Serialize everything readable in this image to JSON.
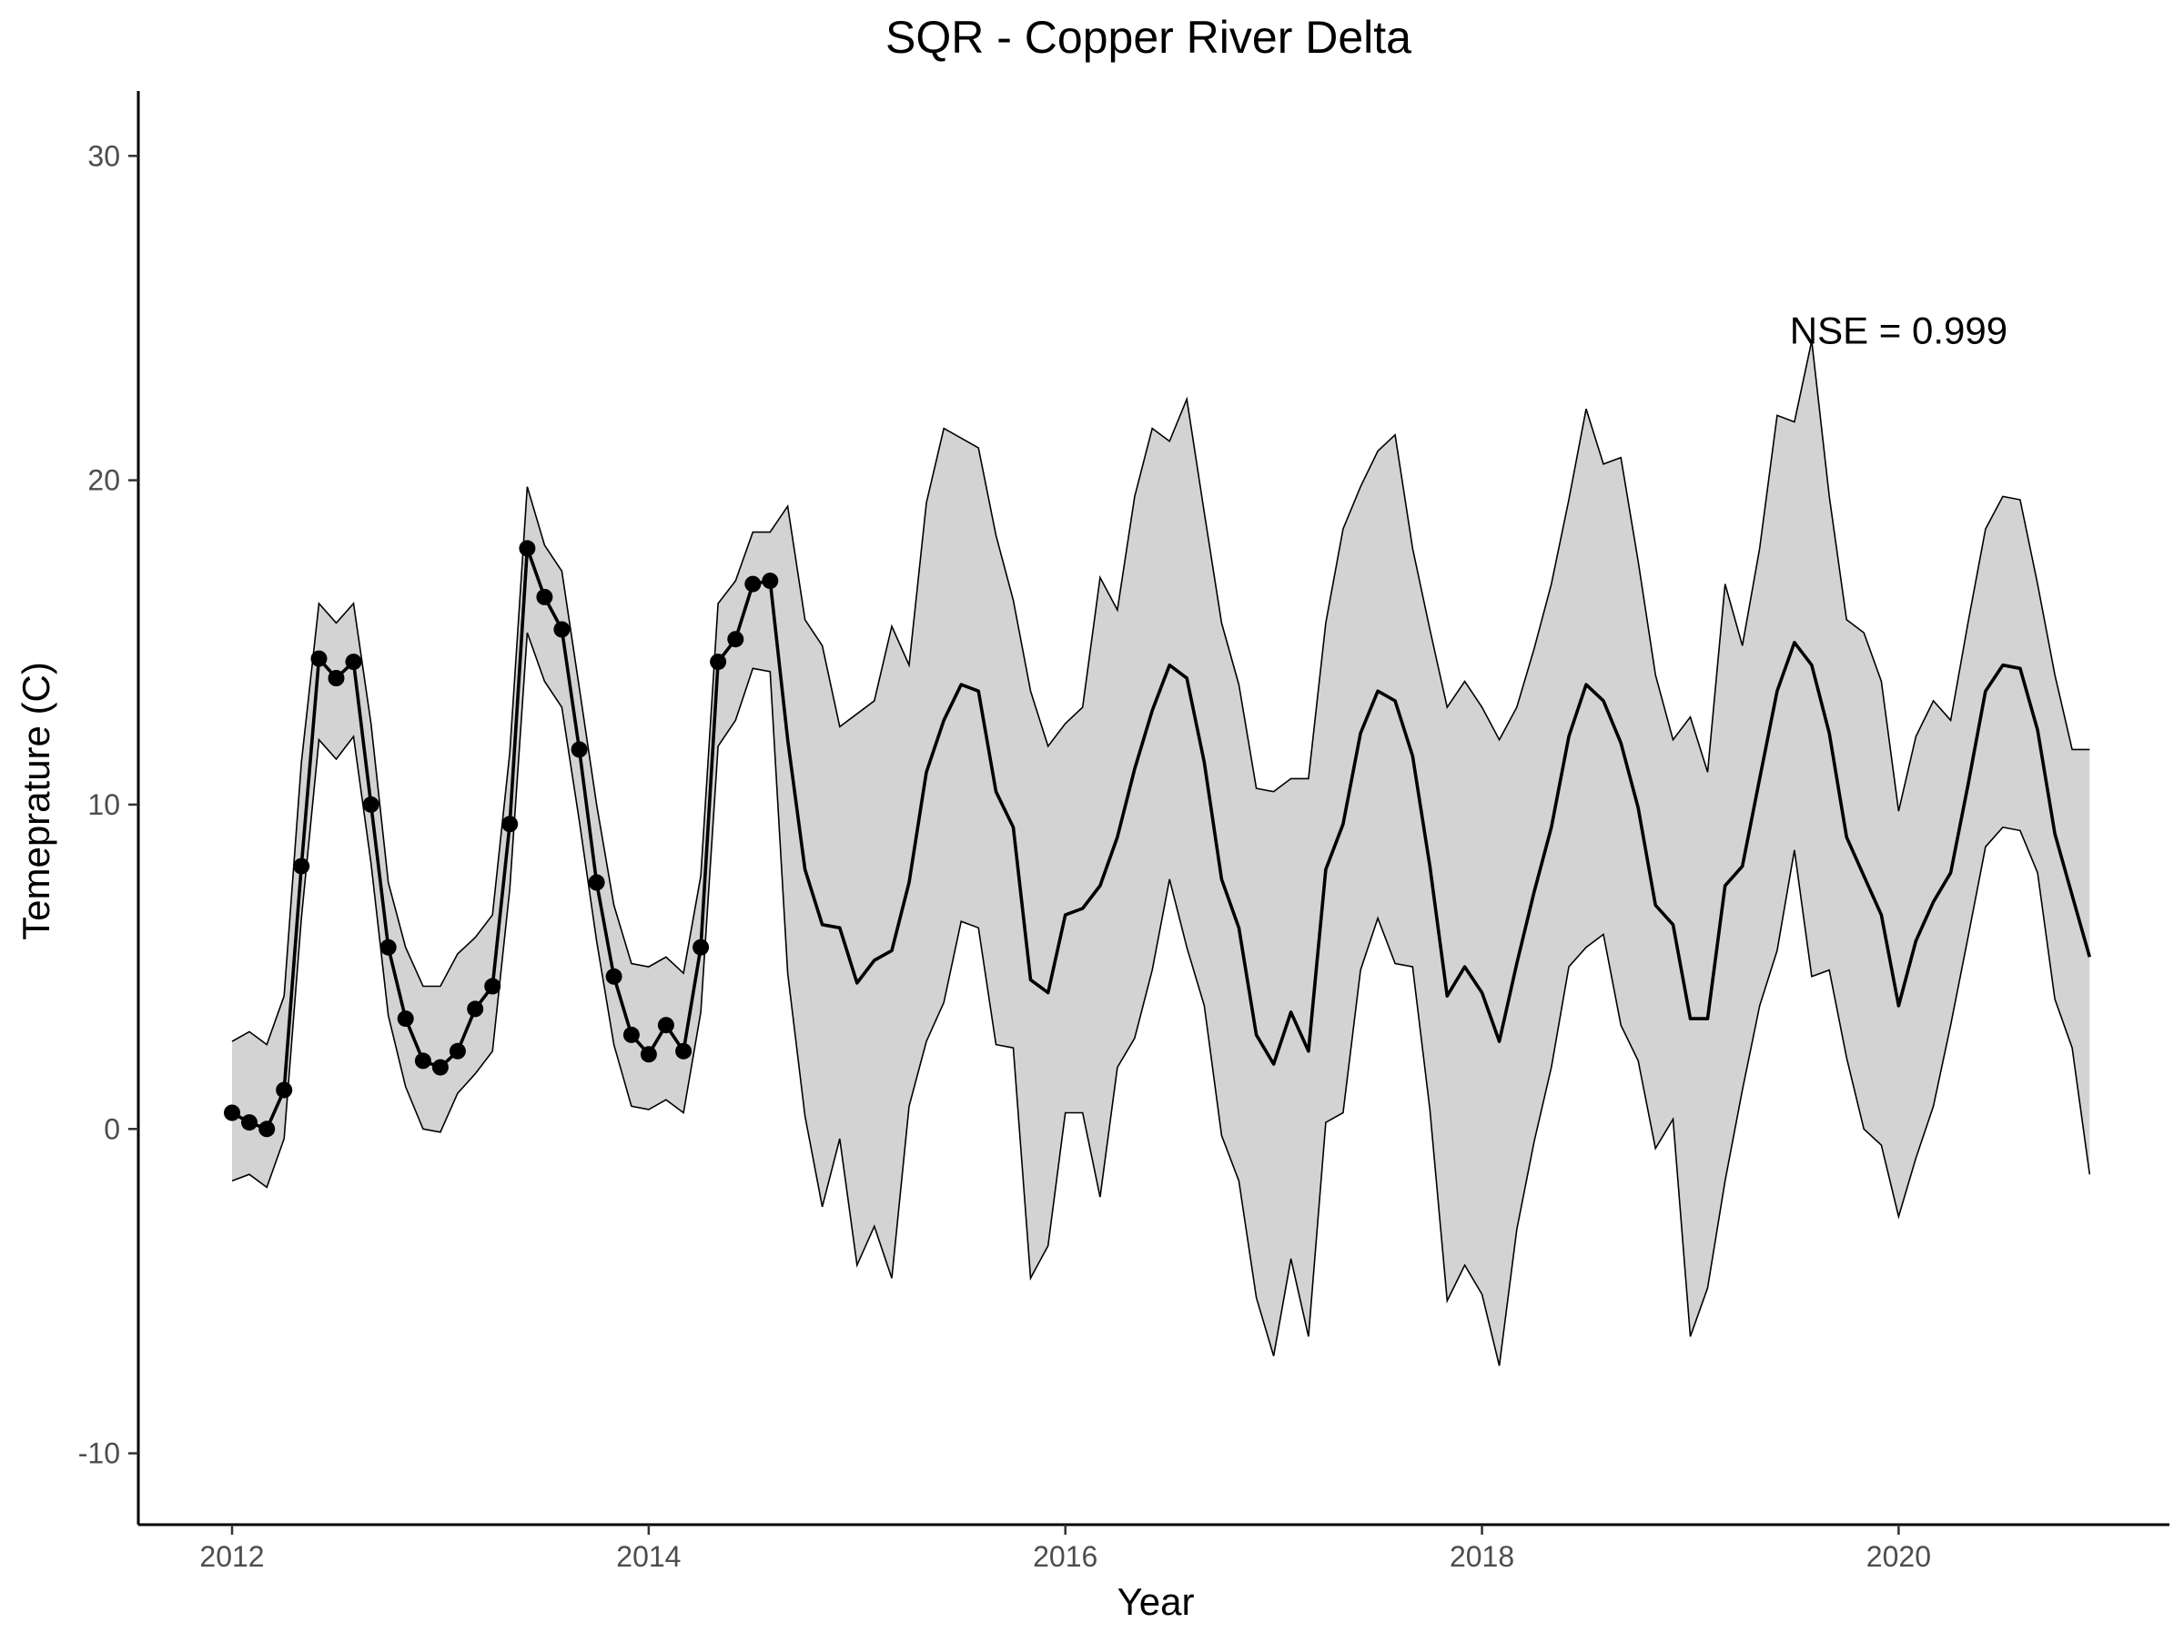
{
  "chart_data": {
    "type": "line",
    "title": "SQR - Copper River Delta",
    "xlabel": "Year",
    "ylabel": "Temeprature (C)",
    "xlim": [
      2011.55,
      2021.3
    ],
    "ylim": [
      -12.2,
      32
    ],
    "x_ticks": [
      2012,
      2014,
      2016,
      2018,
      2020
    ],
    "x_tick_labels": [
      "2012",
      "2014",
      "2016",
      "2018",
      "2020"
    ],
    "y_ticks": [
      -10,
      0,
      10,
      20,
      30
    ],
    "y_tick_labels": [
      "-10",
      "0",
      "10",
      "20",
      "30"
    ],
    "grid": false,
    "legend": "none",
    "annotation": {
      "text": "NSE = 0.999",
      "x": 2020.0,
      "y": 24.6
    },
    "colors": {
      "ribbon": "#d3d3d3",
      "line": "#000000",
      "points": "#000000"
    },
    "series": [
      {
        "kind": "ribbon",
        "x": [
          2012.0,
          2012.083,
          2012.167,
          2012.25,
          2012.333,
          2012.417,
          2012.5,
          2012.583,
          2012.667,
          2012.75,
          2012.833,
          2012.917,
          2013.0,
          2013.083,
          2013.167,
          2013.25,
          2013.333,
          2013.417,
          2013.5,
          2013.583,
          2013.667,
          2013.75,
          2013.833,
          2013.917,
          2014.0,
          2014.083,
          2014.167,
          2014.25,
          2014.333,
          2014.417,
          2014.5,
          2014.583,
          2014.667,
          2014.75,
          2014.833,
          2014.917,
          2015.0,
          2015.083,
          2015.167,
          2015.25,
          2015.333,
          2015.417,
          2015.5,
          2015.583,
          2015.667,
          2015.75,
          2015.833,
          2015.917,
          2016.0,
          2016.083,
          2016.167,
          2016.25,
          2016.333,
          2016.417,
          2016.5,
          2016.583,
          2016.667,
          2016.75,
          2016.833,
          2016.917,
          2017.0,
          2017.083,
          2017.167,
          2017.25,
          2017.333,
          2017.417,
          2017.5,
          2017.583,
          2017.667,
          2017.75,
          2017.833,
          2017.917,
          2018.0,
          2018.083,
          2018.167,
          2018.25,
          2018.333,
          2018.417,
          2018.5,
          2018.583,
          2018.667,
          2018.75,
          2018.833,
          2018.917,
          2019.0,
          2019.083,
          2019.167,
          2019.25,
          2019.333,
          2019.417,
          2019.5,
          2019.583,
          2019.667,
          2019.75,
          2019.833,
          2019.917,
          2020.0,
          2020.083,
          2020.167,
          2020.25,
          2020.333,
          2020.417,
          2020.5,
          2020.583,
          2020.667,
          2020.75,
          2020.833,
          2020.917
        ],
        "upper": [
          2.7,
          3.0,
          2.6,
          4.1,
          11.3,
          16.2,
          15.6,
          16.2,
          12.5,
          7.6,
          5.6,
          4.4,
          4.4,
          5.4,
          5.9,
          6.6,
          11.6,
          19.8,
          18.0,
          17.2,
          13.6,
          10.0,
          6.9,
          5.1,
          5.0,
          5.3,
          4.8,
          7.8,
          16.2,
          16.9,
          18.4,
          18.4,
          19.2,
          15.7,
          14.9,
          12.4,
          12.8,
          13.2,
          15.5,
          14.3,
          19.3,
          21.6,
          21.3,
          21.0,
          18.3,
          16.3,
          13.5,
          11.8,
          12.5,
          13.0,
          17.0,
          16.0,
          19.5,
          21.6,
          21.2,
          22.5,
          19.0,
          15.6,
          13.7,
          10.5,
          10.4,
          10.8,
          10.8,
          15.6,
          18.5,
          19.8,
          20.9,
          21.4,
          17.9,
          15.4,
          13.0,
          13.8,
          13.0,
          12.0,
          13.0,
          14.8,
          16.8,
          19.4,
          22.2,
          20.5,
          20.7,
          17.5,
          14.0,
          12.0,
          12.7,
          11.0,
          16.8,
          14.9,
          17.9,
          22.0,
          21.8,
          24.3,
          19.5,
          15.7,
          15.3,
          13.8,
          9.8,
          12.1,
          13.2,
          12.6,
          15.6,
          18.5,
          19.5,
          19.4,
          16.8,
          14.0,
          11.7,
          11.7
        ],
        "lower": [
          -1.6,
          -1.4,
          -1.8,
          -0.3,
          6.5,
          12.0,
          11.4,
          12.1,
          8.2,
          3.5,
          1.3,
          0.0,
          -0.1,
          1.1,
          1.7,
          2.4,
          7.4,
          15.3,
          13.8,
          13.0,
          9.5,
          5.8,
          2.6,
          0.7,
          0.6,
          0.9,
          0.5,
          3.6,
          11.8,
          12.6,
          14.2,
          14.1,
          4.8,
          0.4,
          -2.4,
          -0.3,
          -4.2,
          -3.0,
          -4.6,
          0.7,
          2.7,
          3.9,
          6.4,
          6.2,
          2.6,
          2.5,
          -4.6,
          -3.6,
          0.5,
          0.5,
          -2.1,
          1.9,
          2.8,
          4.9,
          7.7,
          5.6,
          3.8,
          -0.2,
          -1.6,
          -5.2,
          -7.0,
          -4.0,
          -6.4,
          0.2,
          0.5,
          4.9,
          6.5,
          5.1,
          5.0,
          0.6,
          -5.3,
          -4.2,
          -5.1,
          -7.3,
          -3.1,
          -0.4,
          1.9,
          5.0,
          5.6,
          6.0,
          3.2,
          2.1,
          -0.6,
          0.3,
          -6.4,
          -4.9,
          -1.6,
          1.2,
          3.8,
          5.5,
          8.6,
          4.7,
          4.9,
          2.2,
          0.0,
          -0.5,
          -2.7,
          -0.9,
          0.7,
          3.2,
          5.9,
          8.7,
          9.3,
          9.2,
          7.9,
          4.0,
          2.5,
          -1.4
        ]
      },
      {
        "kind": "line",
        "name": "",
        "x": [
          2012.0,
          2012.083,
          2012.167,
          2012.25,
          2012.333,
          2012.417,
          2012.5,
          2012.583,
          2012.667,
          2012.75,
          2012.833,
          2012.917,
          2013.0,
          2013.083,
          2013.167,
          2013.25,
          2013.333,
          2013.417,
          2013.5,
          2013.583,
          2013.667,
          2013.75,
          2013.833,
          2013.917,
          2014.0,
          2014.083,
          2014.167,
          2014.25,
          2014.333,
          2014.417,
          2014.5,
          2014.583,
          2014.667,
          2014.75,
          2014.833,
          2014.917,
          2015.0,
          2015.083,
          2015.167,
          2015.25,
          2015.333,
          2015.417,
          2015.5,
          2015.583,
          2015.667,
          2015.75,
          2015.833,
          2015.917,
          2016.0,
          2016.083,
          2016.167,
          2016.25,
          2016.333,
          2016.417,
          2016.5,
          2016.583,
          2016.667,
          2016.75,
          2016.833,
          2016.917,
          2017.0,
          2017.083,
          2017.167,
          2017.25,
          2017.333,
          2017.417,
          2017.5,
          2017.583,
          2017.667,
          2017.75,
          2017.833,
          2017.917,
          2018.0,
          2018.083,
          2018.167,
          2018.25,
          2018.333,
          2018.417,
          2018.5,
          2018.583,
          2018.667,
          2018.75,
          2018.833,
          2018.917,
          2019.0,
          2019.083,
          2019.167,
          2019.25,
          2019.333,
          2019.417,
          2019.5,
          2019.583,
          2019.667,
          2019.75,
          2019.833,
          2019.917,
          2020.0,
          2020.083,
          2020.167,
          2020.25,
          2020.333,
          2020.417,
          2020.5,
          2020.583,
          2020.667,
          2020.75,
          2020.833,
          2020.917
        ],
        "y": [
          0.5,
          0.2,
          0.0,
          1.2,
          8.1,
          14.5,
          13.9,
          14.4,
          10.0,
          5.6,
          3.4,
          2.1,
          1.9,
          2.4,
          3.7,
          4.4,
          9.4,
          17.9,
          16.4,
          15.4,
          11.7,
          7.6,
          4.7,
          2.9,
          2.3,
          3.2,
          2.4,
          5.6,
          14.4,
          15.1,
          16.8,
          16.9,
          12.0,
          8.0,
          6.3,
          6.2,
          4.5,
          5.2,
          5.5,
          7.6,
          11.0,
          12.6,
          13.7,
          13.5,
          10.4,
          9.3,
          4.6,
          4.2,
          6.6,
          6.8,
          7.5,
          9.0,
          11.1,
          12.9,
          14.3,
          13.9,
          11.3,
          7.7,
          6.2,
          2.9,
          2.0,
          3.6,
          2.4,
          8.0,
          9.4,
          12.2,
          13.5,
          13.2,
          11.5,
          8.1,
          4.1,
          5.0,
          4.2,
          2.7,
          5.1,
          7.3,
          9.3,
          12.1,
          13.7,
          13.2,
          11.9,
          9.9,
          6.9,
          6.3,
          3.4,
          3.4,
          7.5,
          8.1,
          10.8,
          13.5,
          15.0,
          14.3,
          12.2,
          9.0,
          7.8,
          6.6,
          3.8,
          5.8,
          7.0,
          7.9,
          10.6,
          13.5,
          14.3,
          14.2,
          12.3,
          9.1,
          7.2,
          5.3
        ]
      },
      {
        "kind": "points",
        "name": "",
        "x": [
          2012.0,
          2012.083,
          2012.167,
          2012.25,
          2012.333,
          2012.417,
          2012.5,
          2012.583,
          2012.667,
          2012.75,
          2012.833,
          2012.917,
          2013.0,
          2013.083,
          2013.167,
          2013.25,
          2013.333,
          2013.417,
          2013.5,
          2013.583,
          2013.667,
          2013.75,
          2013.833,
          2013.917,
          2014.0,
          2014.083,
          2014.167,
          2014.25,
          2014.333,
          2014.417,
          2014.5,
          2014.583
        ],
        "y": [
          0.5,
          0.2,
          0.0,
          1.2,
          8.1,
          14.5,
          13.9,
          14.4,
          10.0,
          5.6,
          3.4,
          2.1,
          1.9,
          2.4,
          3.7,
          4.4,
          9.4,
          17.9,
          16.4,
          15.4,
          11.7,
          7.6,
          4.7,
          2.9,
          2.3,
          3.2,
          2.4,
          5.6,
          14.4,
          15.1,
          16.8,
          16.9
        ]
      }
    ]
  }
}
